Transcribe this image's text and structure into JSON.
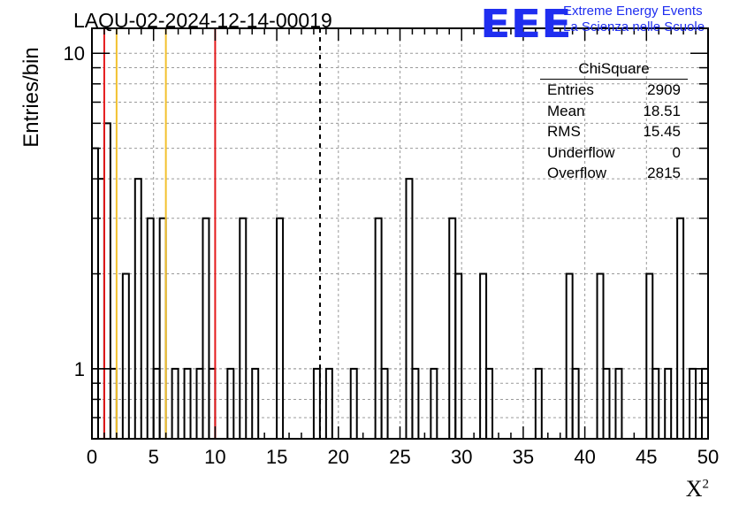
{
  "title": "LAQU-02-2024-12-14-00019",
  "logo": {
    "mark": "EEE",
    "line1": "Extreme Energy Events",
    "line2": "La Scienza nelle Scuole"
  },
  "axes": {
    "xlabel": "X",
    "xlabel_sup": "2",
    "ylabel": "Entries/bin"
  },
  "stats": {
    "name": "ChiSquare",
    "rows": [
      {
        "label": "Entries",
        "value": "2909"
      },
      {
        "label": "Mean",
        "value": "18.51"
      },
      {
        "label": "RMS",
        "value": "15.45"
      },
      {
        "label": "Underflow",
        "value": "0"
      },
      {
        "label": "Overflow",
        "value": "2815"
      }
    ]
  },
  "chart_data": {
    "type": "bar",
    "bin_width": 1,
    "xlim": [
      0,
      50
    ],
    "ylim": [
      0.6,
      12
    ],
    "yscale": "log",
    "x_ticks": [
      0,
      5,
      10,
      15,
      20,
      25,
      30,
      35,
      40,
      45,
      50
    ],
    "y_ticks": [
      1,
      10
    ],
    "grid": true,
    "bins": [
      {
        "x": 0,
        "count": 5
      },
      {
        "x": 0.5,
        "count": 4
      },
      {
        "x": 1,
        "count": 6
      },
      {
        "x": 1.5,
        "count": 1
      },
      {
        "x": 2.5,
        "count": 2
      },
      {
        "x": 3.5,
        "count": 4
      },
      {
        "x": 4.5,
        "count": 3
      },
      {
        "x": 5,
        "count": 1
      },
      {
        "x": 5.5,
        "count": 3
      },
      {
        "x": 6.5,
        "count": 1
      },
      {
        "x": 7.5,
        "count": 1
      },
      {
        "x": 8.5,
        "count": 1
      },
      {
        "x": 9,
        "count": 3
      },
      {
        "x": 9.5,
        "count": 1
      },
      {
        "x": 11,
        "count": 1
      },
      {
        "x": 12,
        "count": 3
      },
      {
        "x": 13,
        "count": 1
      },
      {
        "x": 15,
        "count": 3
      },
      {
        "x": 18,
        "count": 1
      },
      {
        "x": 19,
        "count": 1
      },
      {
        "x": 21,
        "count": 1
      },
      {
        "x": 23,
        "count": 3
      },
      {
        "x": 23.5,
        "count": 1
      },
      {
        "x": 25.5,
        "count": 4
      },
      {
        "x": 26,
        "count": 1
      },
      {
        "x": 27.5,
        "count": 1
      },
      {
        "x": 29,
        "count": 3
      },
      {
        "x": 29.5,
        "count": 2
      },
      {
        "x": 31.5,
        "count": 2
      },
      {
        "x": 32,
        "count": 1
      },
      {
        "x": 36,
        "count": 1
      },
      {
        "x": 38.5,
        "count": 2
      },
      {
        "x": 39,
        "count": 1
      },
      {
        "x": 41,
        "count": 2
      },
      {
        "x": 41.5,
        "count": 1
      },
      {
        "x": 42.5,
        "count": 1
      },
      {
        "x": 45,
        "count": 2
      },
      {
        "x": 45.5,
        "count": 1
      },
      {
        "x": 46.5,
        "count": 1
      },
      {
        "x": 47.5,
        "count": 3
      },
      {
        "x": 48.5,
        "count": 1
      },
      {
        "x": 49.5,
        "count": 1
      }
    ],
    "vertical_lines": [
      {
        "x": 1,
        "color": "#e41a1c",
        "style": "solid"
      },
      {
        "x": 2,
        "color": "#f2c12e",
        "style": "solid"
      },
      {
        "x": 6,
        "color": "#f2c12e",
        "style": "solid"
      },
      {
        "x": 10,
        "color": "#e41a1c",
        "style": "solid"
      },
      {
        "x": 18.51,
        "color": "#000000",
        "style": "dashed"
      }
    ]
  }
}
